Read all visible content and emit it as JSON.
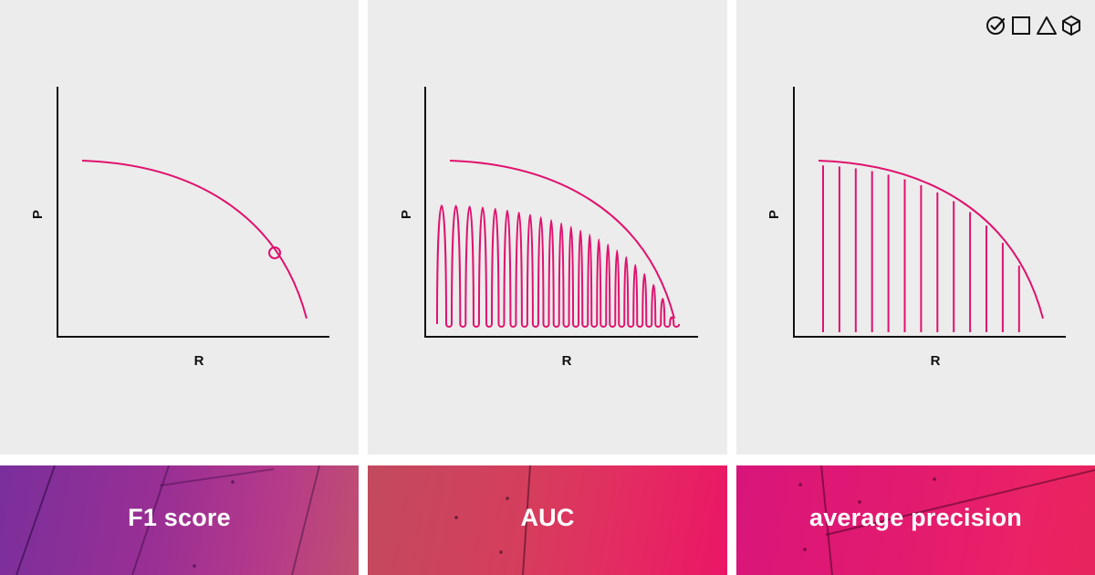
{
  "accent_color": "#e0126e",
  "logo": {
    "icons": [
      "check-circle-icon",
      "square-icon",
      "triangle-icon",
      "cube-icon"
    ]
  },
  "panels": [
    {
      "id": "f1",
      "x_label": "R",
      "y_label": "P",
      "title": "F1 score",
      "illustration": "pr-curve-with-point"
    },
    {
      "id": "auc",
      "x_label": "R",
      "y_label": "P",
      "title": "AUC",
      "illustration": "pr-curve-area-filled"
    },
    {
      "id": "ap",
      "x_label": "R",
      "y_label": "P",
      "title": "average precision",
      "illustration": "pr-curve-vertical-bars"
    }
  ]
}
